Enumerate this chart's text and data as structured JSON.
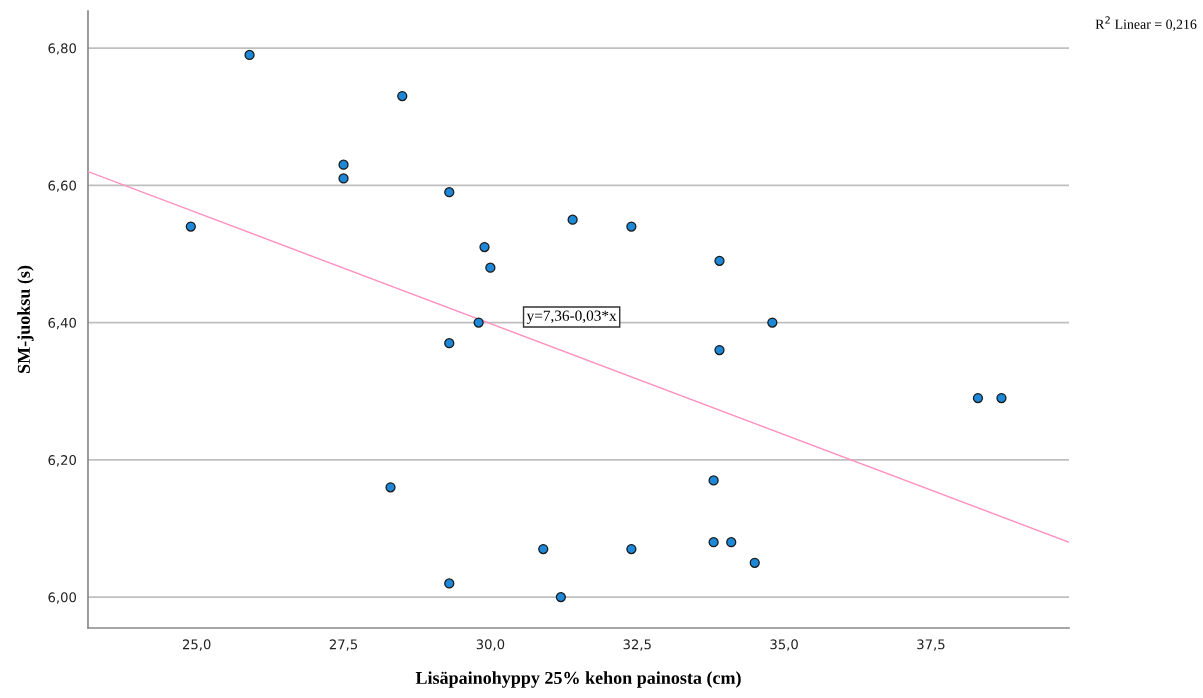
{
  "chart_data": {
    "type": "scatter",
    "xlabel": "Lisäpainohyppy 25% kehon painosta (cm)",
    "ylabel": "SM-juoksu (s)",
    "xlim": [
      23.15,
      39.85
    ],
    "ylim": [
      5.955,
      6.854
    ],
    "xticks": [
      {
        "value": 25,
        "label": "25,0"
      },
      {
        "value": 27.5,
        "label": "27,5"
      },
      {
        "value": 30,
        "label": "30,0"
      },
      {
        "value": 32.5,
        "label": "32,5"
      },
      {
        "value": 35,
        "label": "35,0"
      },
      {
        "value": 37.5,
        "label": "37,5"
      }
    ],
    "yticks": [
      {
        "value": 6.0,
        "label": "6,00"
      },
      {
        "value": 6.2,
        "label": "6,20"
      },
      {
        "value": 6.4,
        "label": "6,40"
      },
      {
        "value": 6.6,
        "label": "6,60"
      },
      {
        "value": 6.8,
        "label": "6,80"
      }
    ],
    "grid": "y",
    "series": [
      {
        "marker": "circle",
        "color": "#1e88d8",
        "x": [
          25.9,
          24.9,
          28.5,
          27.5,
          27.5,
          29.3,
          31.4,
          29.9,
          30.0,
          29.8,
          29.3,
          34.8,
          33.9,
          38.3,
          38.7,
          33.8,
          30.9,
          32.4,
          33.8,
          34.1,
          34.5,
          29.3,
          31.2,
          28.3,
          32.4,
          33.9
        ],
        "values": [
          6.79,
          6.54,
          6.73,
          6.63,
          6.61,
          6.59,
          6.55,
          6.51,
          6.48,
          6.4,
          6.37,
          6.4,
          6.36,
          6.29,
          6.29,
          6.17,
          6.07,
          6.07,
          6.08,
          6.08,
          6.05,
          6.02,
          6.0,
          6.16,
          6.54,
          6.49
        ]
      },
      {
        "type": "line",
        "color": "#ff8fc0",
        "x": [
          23.15,
          39.85
        ],
        "values": [
          6.62,
          6.08
        ]
      }
    ],
    "annotations": [
      "y=7,36-0,03*x",
      "R$^{2}$ Linear = 0,216"
    ]
  }
}
